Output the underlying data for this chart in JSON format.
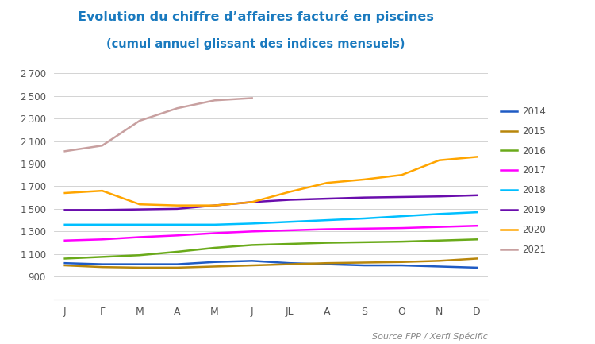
{
  "title_line1": "Evolution du chiffre d’affaires facturé en piscines",
  "title_line2": "(cumul annuel glissant des indices mensuels)",
  "source": "Source FPP / Xerfi Spécific",
  "months": [
    "J",
    "F",
    "M",
    "A",
    "M",
    "J",
    "JL",
    "A",
    "S",
    "O",
    "N",
    "D"
  ],
  "series": {
    "2014": {
      "color": "#1f5bc4",
      "values": [
        1020,
        1010,
        1010,
        1010,
        1030,
        1040,
        1020,
        1010,
        1000,
        1000,
        990,
        980
      ]
    },
    "2015": {
      "color": "#b8860b",
      "values": [
        1000,
        985,
        980,
        980,
        990,
        1000,
        1010,
        1020,
        1025,
        1030,
        1040,
        1060
      ]
    },
    "2016": {
      "color": "#6aaa1a",
      "values": [
        1060,
        1075,
        1090,
        1120,
        1155,
        1180,
        1190,
        1200,
        1205,
        1210,
        1220,
        1230
      ]
    },
    "2017": {
      "color": "#ff00ff",
      "values": [
        1220,
        1230,
        1250,
        1265,
        1285,
        1300,
        1310,
        1320,
        1325,
        1330,
        1340,
        1350
      ]
    },
    "2018": {
      "color": "#00bfff",
      "values": [
        1360,
        1360,
        1360,
        1360,
        1360,
        1370,
        1385,
        1400,
        1415,
        1435,
        1455,
        1470
      ]
    },
    "2019": {
      "color": "#6a0dad",
      "values": [
        1490,
        1490,
        1495,
        1500,
        1530,
        1560,
        1580,
        1590,
        1600,
        1605,
        1610,
        1620
      ]
    },
    "2020": {
      "color": "#ffa500",
      "values": [
        1640,
        1660,
        1540,
        1530,
        1530,
        1560,
        1650,
        1730,
        1760,
        1800,
        1930,
        1960
      ]
    },
    "2021": {
      "color": "#c8a0a0",
      "values": [
        2010,
        2060,
        2280,
        2390,
        2460,
        2480,
        null,
        null,
        null,
        null,
        null,
        null
      ]
    }
  },
  "ylim": [
    700,
    2800
  ],
  "yticks": [
    900,
    1100,
    1300,
    1500,
    1700,
    1900,
    2100,
    2300,
    2500,
    2700
  ],
  "background_color": "#ffffff",
  "title_color": "#1a7abf",
  "grid_color": "#cccccc"
}
